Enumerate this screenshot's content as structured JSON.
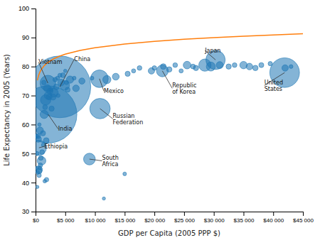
{
  "chart_data": {
    "type": "scatter",
    "xlabel": "GDP per Capita (2005 PPP $)",
    "ylabel": "Life Expectancy in 2005 (Years)",
    "xlim": [
      0,
      45000
    ],
    "ylim": [
      30,
      100
    ],
    "xticks": [
      {
        "value": 0,
        "label": "$0"
      },
      {
        "value": 5000,
        "label": "$5 000"
      },
      {
        "value": 10000,
        "label": "$10 000"
      },
      {
        "value": 15000,
        "label": "$15 000"
      },
      {
        "value": 20000,
        "label": "$20 000"
      },
      {
        "value": 25000,
        "label": "$25 000"
      },
      {
        "value": 30000,
        "label": "$30 000"
      },
      {
        "value": 35000,
        "label": "$35 000"
      },
      {
        "value": 40000,
        "label": "$40 000"
      },
      {
        "value": 45000,
        "label": "$45 000"
      }
    ],
    "yticks": [
      30,
      40,
      50,
      60,
      70,
      80,
      90,
      100
    ],
    "series": [
      {
        "type": "scatter",
        "x": [
          450,
          620,
          800,
          550,
          350,
          1000,
          1250,
          1450,
          750,
          1100,
          1700,
          2100,
          2400,
          3100,
          3500,
          4300,
          4900,
          5800,
          6800,
          7800,
          1950,
          2300,
          3300,
          4600,
          5200,
          6500,
          1550,
          1850,
          300,
          420,
          1800,
          600,
          700,
          900,
          2700,
          2950,
          4100,
          5400,
          12000,
          13500,
          15500,
          17500,
          19500,
          21500,
          23500,
          25500,
          27000,
          28500,
          29500,
          31000,
          32500,
          33500,
          35000,
          36000,
          37000,
          38000,
          39500,
          42000,
          26500,
          24500,
          22500,
          20000,
          16500,
          9500,
          11500,
          15000,
          1300,
          650,
          1600,
          2600,
          3800,
          5000,
          200,
          180,
          250,
          1400,
          3700,
          43000
        ],
        "values": [
          55.0,
          44.0,
          46.0,
          44.5,
          43.5,
          47.5,
          57.0,
          63.5,
          58.0,
          50.5,
          68.5,
          70.0,
          71.5,
          71.0,
          73.0,
          74.5,
          73.5,
          75.5,
          72.5,
          75.0,
          72.5,
          69.5,
          75.5,
          77.0,
          74.5,
          76.0,
          40.5,
          41.0,
          38.5,
          56.0,
          54.5,
          42.5,
          45.0,
          48.5,
          65.5,
          69.5,
          77.0,
          72.0,
          75.5,
          76.5,
          77.5,
          79.5,
          78.5,
          80.0,
          80.5,
          80.5,
          79.5,
          80.5,
          80.0,
          80.5,
          80.0,
          80.5,
          80.5,
          80.0,
          79.5,
          80.5,
          81.0,
          79.5,
          80.0,
          78.5,
          79.0,
          79.5,
          78.5,
          76.0,
          34.5,
          43.0,
          53.0,
          60.0,
          66.0,
          72.0,
          70.0,
          78.5,
          56.0,
          45.0,
          50.0,
          74.5,
          76.0,
          80.0
        ],
        "sizes": [
          14000000,
          11000000,
          7000000,
          18000000,
          5000000,
          26000000,
          9000000,
          23000000,
          16000000,
          8000000,
          37000000,
          20000000,
          13000000,
          25000000,
          11000000,
          16000000,
          32000000,
          18000000,
          15000000,
          13000000,
          19000000,
          12000000,
          7000000,
          8000000,
          6000000,
          5000000,
          4500000,
          6500000,
          3500000,
          8500000,
          11000000,
          6500000,
          4500000,
          7500000,
          9500000,
          13000000,
          5500000,
          8500000,
          23000000,
          16000000,
          9000000,
          7500000,
          14000000,
          11000000,
          7500000,
          20000000,
          9500000,
          52000000,
          28000000,
          17000000,
          9500000,
          7500000,
          19000000,
          15000000,
          10000000,
          8500000,
          6500000,
          14000000,
          8000000,
          6000000,
          10000000,
          7000000,
          6000000,
          5000000,
          3500000,
          4500000,
          5000000,
          4000000,
          8000000,
          6000000,
          5000000,
          4000000,
          5000000,
          4000000,
          6000000,
          7000000,
          5500000,
          5000000
        ]
      },
      {
        "type": "scatter",
        "x": [
          4088,
          2126,
          41921,
          30290,
          21342,
          10751,
          2072,
          571,
          9066,
          10845
        ],
        "values": [
          73.0,
          63.5,
          77.9,
          82.3,
          78.5,
          75.8,
          74.3,
          52.0,
          48.1,
          65.5
        ],
        "sizes": [
          1312979000,
          1131043000,
          302193000,
          127757000,
          48297000,
          106535000,
          84218000,
          78098000,
          47432000,
          143221000
        ]
      },
      {
        "type": "line",
        "x": [
          300,
          500,
          750,
          1000,
          1500,
          2000,
          3000,
          4000,
          5000,
          7500,
          10000,
          15000,
          20000,
          25000,
          30000,
          35000,
          40000,
          45000
        ],
        "values": [
          75.252,
          76.887,
          78.184,
          79.105,
          80.402,
          81.323,
          82.62,
          83.541,
          84.255,
          85.553,
          86.473,
          87.771,
          88.691,
          89.405,
          89.989,
          90.482,
          90.909,
          91.286
        ]
      }
    ],
    "annotations": [
      {
        "text": "China",
        "x": 4088,
        "y": 73.0,
        "text_x": 6500,
        "text_y": 82.5
      },
      {
        "text": "India",
        "x": 2126,
        "y": 63.5,
        "text_x": 3800,
        "text_y": 58.5
      },
      {
        "text": "United\nStates",
        "x": 41921,
        "y": 77.9,
        "text_x": 38500,
        "text_y": 73.5
      },
      {
        "text": "Japan",
        "x": 30290,
        "y": 82.3,
        "text_x": 28500,
        "text_y": 85.5
      },
      {
        "text": "Republic\nof Korea",
        "x": 21342,
        "y": 78.5,
        "text_x": 23000,
        "text_y": 72.5
      },
      {
        "text": "Mexico",
        "x": 10751,
        "y": 75.8,
        "text_x": 11500,
        "text_y": 71.5
      },
      {
        "text": "Vietnam",
        "x": 2072,
        "y": 74.3,
        "text_x": 500,
        "text_y": 81.5
      },
      {
        "text": "Ethiopia",
        "x": 571,
        "y": 52.0,
        "text_x": 1500,
        "text_y": 52.5
      },
      {
        "text": "South\nAfrica",
        "x": 9066,
        "y": 48.1,
        "text_x": 11200,
        "text_y": 47.5
      },
      {
        "text": "Russian\nFederation",
        "x": 10845,
        "y": 65.5,
        "text_x": 13000,
        "text_y": 62.0
      }
    ]
  }
}
